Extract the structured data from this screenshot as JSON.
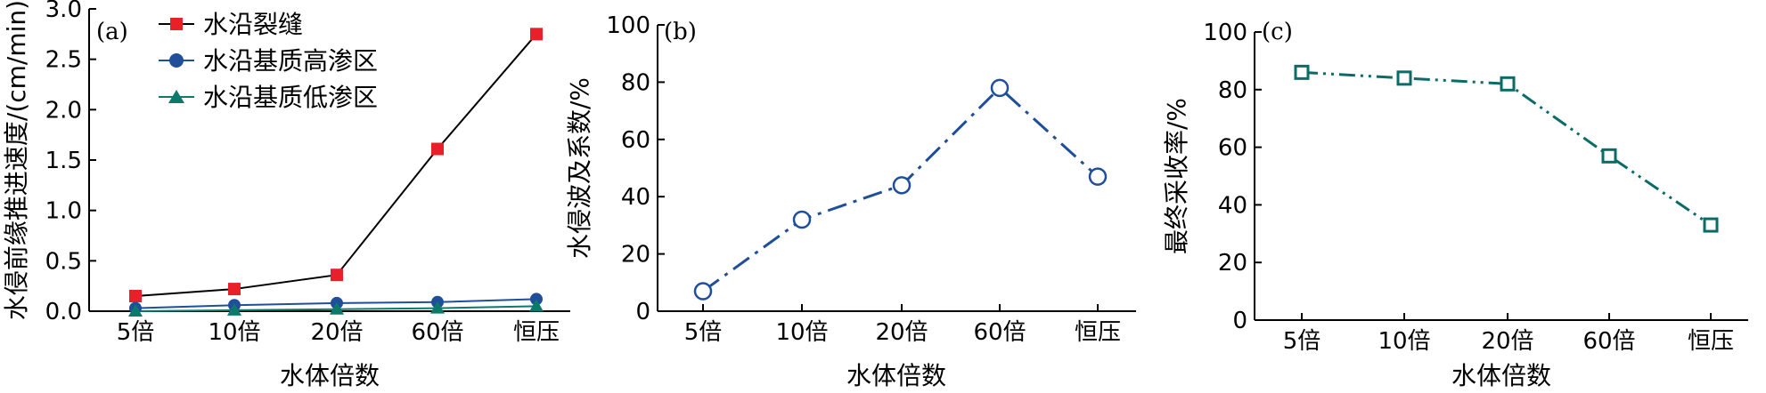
{
  "chart_data": [
    {
      "type": "line",
      "panel_label": "(a)",
      "categories": [
        "5倍",
        "10倍",
        "20倍",
        "60倍",
        "恒压"
      ],
      "xlabel": "水体倍数",
      "ylabel": "水侵前缘推进速度/(cm/min)",
      "ylim": [
        0,
        3.0
      ],
      "yticks": [
        "0.0",
        "0.5",
        "1.0",
        "1.5",
        "2.0",
        "2.5",
        "3.0"
      ],
      "legend_position": "top-left",
      "series": [
        {
          "name": "水沿裂缝",
          "values": [
            0.15,
            0.22,
            0.36,
            1.61,
            2.75
          ],
          "color": "#e8202a",
          "line_color": "#000000",
          "marker": "square"
        },
        {
          "name": "水沿基质高渗区",
          "values": [
            0.03,
            0.06,
            0.08,
            0.09,
            0.12
          ],
          "color": "#1f4e9a",
          "line_color": "#1f4e9a",
          "marker": "circle"
        },
        {
          "name": "水沿基质低渗区",
          "values": [
            0.0,
            0.01,
            0.02,
            0.03,
            0.05
          ],
          "color": "#0b7a6a",
          "line_color": "#0b7a6a",
          "marker": "triangle"
        }
      ]
    },
    {
      "type": "line",
      "panel_label": "(b)",
      "categories": [
        "5倍",
        "10倍",
        "20倍",
        "60倍",
        "恒压"
      ],
      "xlabel": "水体倍数",
      "ylabel": "水侵波及系数/%",
      "ylim": [
        0,
        100
      ],
      "yticks": [
        "0",
        "20",
        "40",
        "60",
        "80",
        "100"
      ],
      "series": [
        {
          "values": [
            7,
            32,
            44,
            78,
            47
          ],
          "color": "#1f4e9a",
          "marker": "circle-open"
        }
      ]
    },
    {
      "type": "line",
      "panel_label": "(c)",
      "categories": [
        "5倍",
        "10倍",
        "20倍",
        "60倍",
        "恒压"
      ],
      "xlabel": "水体倍数",
      "ylabel": "最终采收率/%",
      "ylim": [
        0,
        100
      ],
      "yticks": [
        "0",
        "20",
        "40",
        "60",
        "80",
        "100"
      ],
      "series": [
        {
          "values": [
            86,
            84,
            82,
            57,
            33
          ],
          "color": "#0b6b66",
          "marker": "square-open"
        }
      ]
    }
  ]
}
